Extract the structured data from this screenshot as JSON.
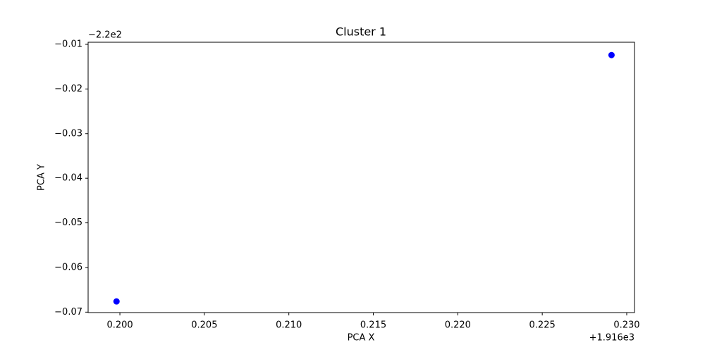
{
  "chart_data": {
    "type": "scatter",
    "title": "Cluster 1",
    "x_label": "PCA X",
    "y_label": "PCA Y",
    "x_offset_label": "+1.916e3",
    "y_offset_label": "−2.2e2",
    "series": [
      {
        "color": "#0000ff",
        "x": [
          0.1998,
          0.2291
        ],
        "values": [
          -0.0676,
          -0.0124
        ]
      }
    ],
    "xlim": [
      0.19812,
      0.23046
    ],
    "ylim": [
      -0.0701,
      -0.00953
    ],
    "xticks": [
      {
        "value": 0.2,
        "label": "0.200"
      },
      {
        "value": 0.205,
        "label": "0.205"
      },
      {
        "value": 0.21,
        "label": "0.210"
      },
      {
        "value": 0.215,
        "label": "0.215"
      },
      {
        "value": 0.22,
        "label": "0.220"
      },
      {
        "value": 0.225,
        "label": "0.225"
      },
      {
        "value": 0.23,
        "label": "0.230"
      }
    ],
    "yticks": [
      {
        "value": -0.01,
        "label": "−0.01"
      },
      {
        "value": -0.02,
        "label": "−0.02"
      },
      {
        "value": -0.03,
        "label": "−0.03"
      },
      {
        "value": -0.04,
        "label": "−0.04"
      },
      {
        "value": -0.05,
        "label": "−0.05"
      },
      {
        "value": -0.06,
        "label": "−0.06"
      },
      {
        "value": -0.07,
        "label": "−0.07"
      }
    ],
    "grid": false
  }
}
